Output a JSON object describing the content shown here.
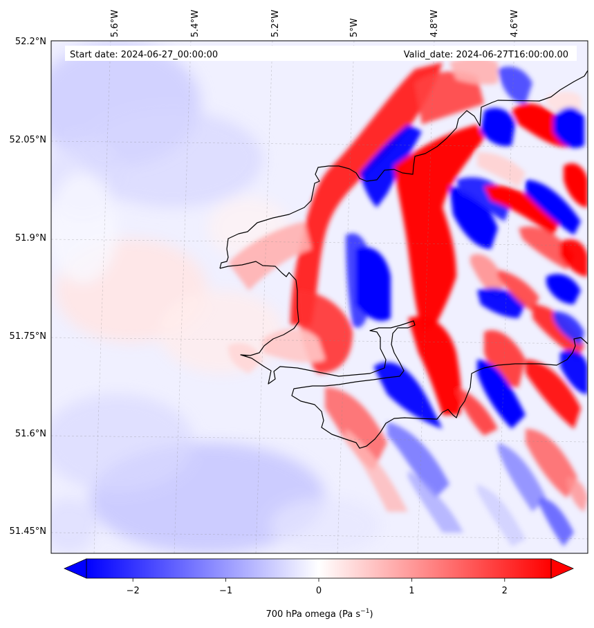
{
  "map": {
    "header": {
      "start_label": "Start date: 2024-06-27_00:00:00",
      "valid_label": "Valid_date: 2024-06-27T16:00:00.00"
    },
    "longitude_labels": [
      "5.6°W",
      "5.4°W",
      "5.2°W",
      "5°W",
      "4.8°W",
      "4.6°W"
    ],
    "latitude_labels": [
      "52.2°N",
      "52.05°N",
      "51.9°N",
      "51.75°N",
      "51.6°N",
      "51.45°N"
    ],
    "colorbar": {
      "tick_labels": [
        "−2",
        "−1",
        "0",
        "1",
        "2"
      ],
      "tick_values": [
        -2,
        -1,
        0,
        1,
        2
      ],
      "range": [
        -2.5,
        2.5
      ],
      "label_main": "700 hPa omega (Pa s",
      "label_exp": "−1",
      "label_close": ")",
      "colors": {
        "negative": "#0000ff",
        "neutral": "#ffffff",
        "positive": "#ff0000"
      },
      "extend": "both"
    },
    "colormap": "bwr",
    "coastline_color": "#000000",
    "gridlines": true
  }
}
